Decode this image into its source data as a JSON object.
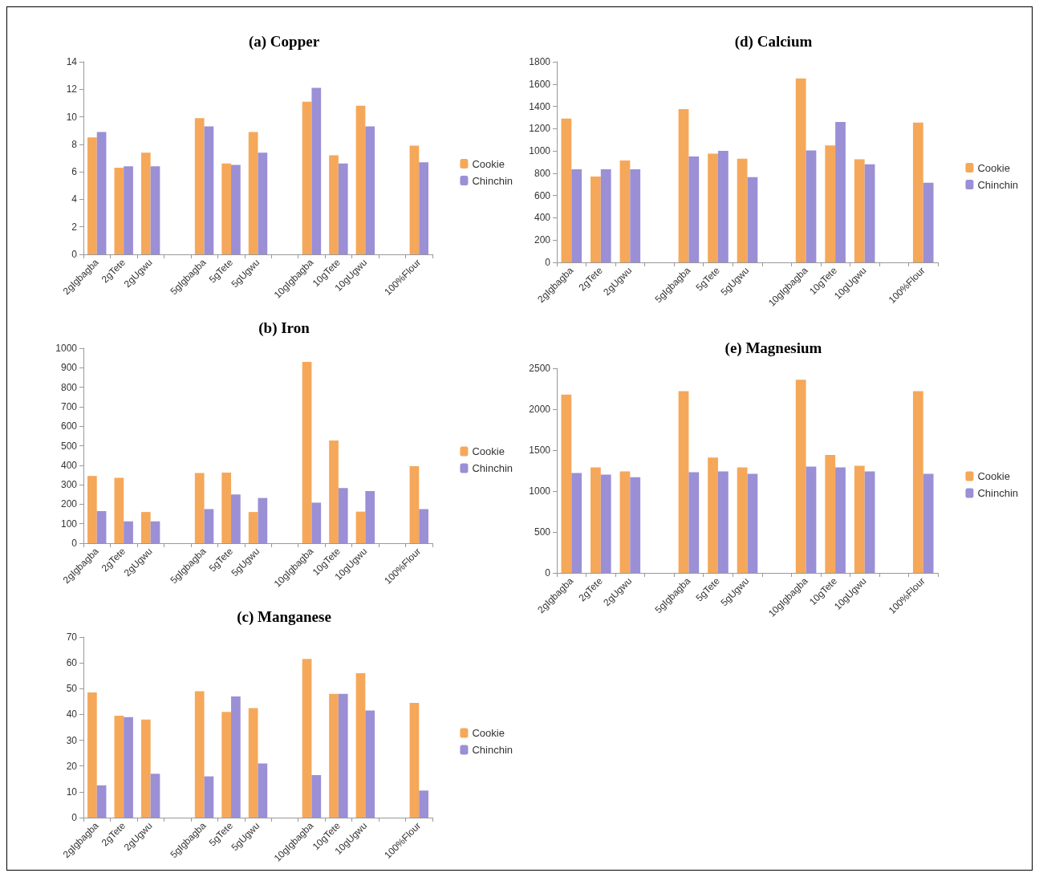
{
  "chart_data": [
    {
      "type": "bar",
      "title": "(a) Copper",
      "categories": [
        "2gIgbagba",
        "2gTete",
        "2gUgwu",
        null,
        "5gIgbagba",
        "5gTete",
        "5gUgwu",
        null,
        "10gIgbagba",
        "10gTete",
        "10gUgwu",
        null,
        "100%Flour"
      ],
      "ylim": [
        0,
        14
      ],
      "yticks": [
        0,
        2,
        4,
        6,
        8,
        10,
        12,
        14
      ],
      "grid": false,
      "legend": "right",
      "series": [
        {
          "name": "Cookie",
          "color": "#f5a85a",
          "values": [
            8.5,
            6.3,
            7.4,
            null,
            9.9,
            6.6,
            8.9,
            null,
            11.1,
            7.2,
            10.8,
            null,
            7.9
          ]
        },
        {
          "name": "Chinchin",
          "color": "#9b8fd6",
          "values": [
            8.9,
            6.4,
            6.4,
            null,
            9.3,
            6.5,
            7.4,
            null,
            12.1,
            6.6,
            9.3,
            null,
            6.7
          ]
        }
      ]
    },
    {
      "type": "bar",
      "title": "(b) Iron",
      "categories": [
        "2gIgbagba",
        "2gTete",
        "2gUgwu",
        null,
        "5gIgbagba",
        "5gTete",
        "5gUgwu",
        null,
        "10gIgbagba",
        "10gTete",
        "10gUgwu",
        null,
        "100%Flour"
      ],
      "ylim": [
        0,
        1000
      ],
      "yticks": [
        0,
        100,
        200,
        300,
        400,
        500,
        600,
        700,
        800,
        900,
        1000
      ],
      "grid": false,
      "legend": "right",
      "series": [
        {
          "name": "Cookie",
          "color": "#f5a85a",
          "values": [
            345,
            335,
            160,
            null,
            360,
            362,
            160,
            null,
            930,
            527,
            162,
            null,
            395
          ]
        },
        {
          "name": "Chinchin",
          "color": "#9b8fd6",
          "values": [
            165,
            112,
            112,
            null,
            175,
            250,
            232,
            null,
            208,
            283,
            268,
            null,
            175
          ]
        }
      ]
    },
    {
      "type": "bar",
      "title": "(c) Manganese",
      "categories": [
        "2gIgbagba",
        "2gTete",
        "2gUgwu",
        null,
        "5gIgbagba",
        "5gTete",
        "5gUgwu",
        null,
        "10gIgbagba",
        "10gTete",
        "10gUgwu",
        null,
        "100%Flour"
      ],
      "ylim": [
        0,
        70
      ],
      "yticks": [
        0,
        10,
        20,
        30,
        40,
        50,
        60,
        70
      ],
      "grid": false,
      "legend": "right",
      "series": [
        {
          "name": "Cookie",
          "color": "#f5a85a",
          "values": [
            48.5,
            39.5,
            38,
            null,
            49,
            41,
            42.5,
            null,
            61.5,
            48,
            56,
            null,
            44.5
          ]
        },
        {
          "name": "Chinchin",
          "color": "#9b8fd6",
          "values": [
            12.5,
            39,
            17,
            null,
            16,
            47,
            21,
            null,
            16.5,
            48,
            41.5,
            null,
            10.5
          ]
        }
      ]
    },
    {
      "type": "bar",
      "title": "(d) Calcium",
      "categories": [
        "2gIgbagba",
        "2gTete",
        "2gUgwu",
        null,
        "5gIgbagba",
        "5gTete",
        "5gUgwu",
        null,
        "10gIgbagba",
        "10gTete",
        "10gUgwu",
        null,
        "100%Flour"
      ],
      "ylim": [
        0,
        1800
      ],
      "yticks": [
        0,
        200,
        400,
        600,
        800,
        1000,
        1200,
        1400,
        1600,
        1800
      ],
      "grid": false,
      "legend": "right",
      "series": [
        {
          "name": "Cookie",
          "color": "#f5a85a",
          "values": [
            1290,
            770,
            915,
            null,
            1375,
            975,
            930,
            null,
            1650,
            1050,
            925,
            null,
            1255
          ]
        },
        {
          "name": "Chinchin",
          "color": "#9b8fd6",
          "values": [
            835,
            835,
            835,
            null,
            950,
            1000,
            765,
            null,
            1005,
            1260,
            880,
            null,
            715
          ]
        }
      ]
    },
    {
      "type": "bar",
      "title": "(e) Magnesium",
      "categories": [
        "2gIgbagba",
        "2gTete",
        "2gUgwu",
        null,
        "5gIgbagba",
        "5gTete",
        "5gUgwu",
        null,
        "10gIgbagba",
        "10gTete",
        "10gUgwu",
        null,
        "100%Flour"
      ],
      "ylim": [
        0,
        2500
      ],
      "yticks": [
        0,
        500,
        1000,
        1500,
        2000,
        2500
      ],
      "grid": false,
      "legend": "right",
      "series": [
        {
          "name": "Cookie",
          "color": "#f5a85a",
          "values": [
            2180,
            1290,
            1240,
            null,
            2220,
            1410,
            1290,
            null,
            2360,
            1440,
            1310,
            null,
            2220
          ]
        },
        {
          "name": "Chinchin",
          "color": "#9b8fd6",
          "values": [
            1220,
            1200,
            1170,
            null,
            1230,
            1240,
            1210,
            null,
            1300,
            1290,
            1240,
            null,
            1210
          ]
        }
      ]
    }
  ]
}
